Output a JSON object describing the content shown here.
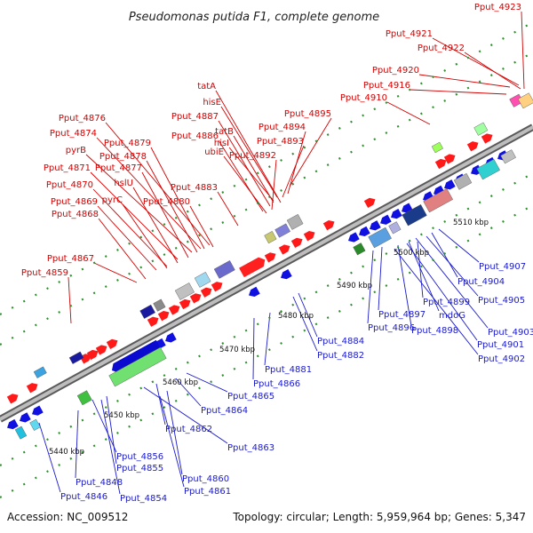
{
  "title": "Pseudomonas putida F1, complete genome",
  "footer": {
    "accession": "Accession: NC_009512",
    "summary": "Topology: circular; Length: 5,959,964 bp; Genes: 5,347"
  },
  "colors": {
    "forward_label": "#d40000",
    "reverse_label": "#1a1acc",
    "backbone": "#8c8c8c",
    "dots": "#2f8f2f"
  },
  "ticks": [
    {
      "label": "5440 kbp"
    },
    {
      "label": "5450 kbp"
    },
    {
      "label": "5460 kbp"
    },
    {
      "label": "5470 kbp"
    },
    {
      "label": "5480 kbp"
    },
    {
      "label": "5490 kbp"
    },
    {
      "label": "5500 kbp"
    },
    {
      "label": "5510 kbp"
    }
  ],
  "forward_labels": [
    "Pput_4923",
    "Pput_4921",
    "Pput_4922",
    "Pput_4920",
    "Pput_4916",
    "Pput_4910",
    "tatA",
    "hisE",
    "Pput_4895",
    "Pput_4887",
    "tatB",
    "Pput_4894",
    "Pput_4886",
    "hisI",
    "Pput_4893",
    "ubiE",
    "Pput_4892",
    "Pput_4876",
    "Pput_4874",
    "Pput_4879",
    "pyrB",
    "Pput_4878",
    "Pput_4871",
    "Pput_4877",
    "hslU",
    "Pput_4870",
    "Pput_4883",
    "Pput_4869",
    "pyrC",
    "Pput_4880",
    "Pput_4868",
    "Pput_4867",
    "Pput_4859"
  ],
  "reverse_labels": [
    "Pput_4907",
    "Pput_4904",
    "Pput_4905",
    "Pput_4899",
    "Pput_4903",
    "mdoG",
    "Pput_4901",
    "Pput_4897",
    "Pput_4896",
    "Pput_4898",
    "Pput_4902",
    "Pput_4884",
    "Pput_4882",
    "Pput_4881",
    "Pput_4866",
    "Pput_4865",
    "Pput_4864",
    "Pput_4862",
    "Pput_4863",
    "Pput_4856",
    "Pput_4855",
    "Pput_4860",
    "Pput_4848",
    "Pput_4861",
    "Pput_4846",
    "Pput_4854"
  ]
}
